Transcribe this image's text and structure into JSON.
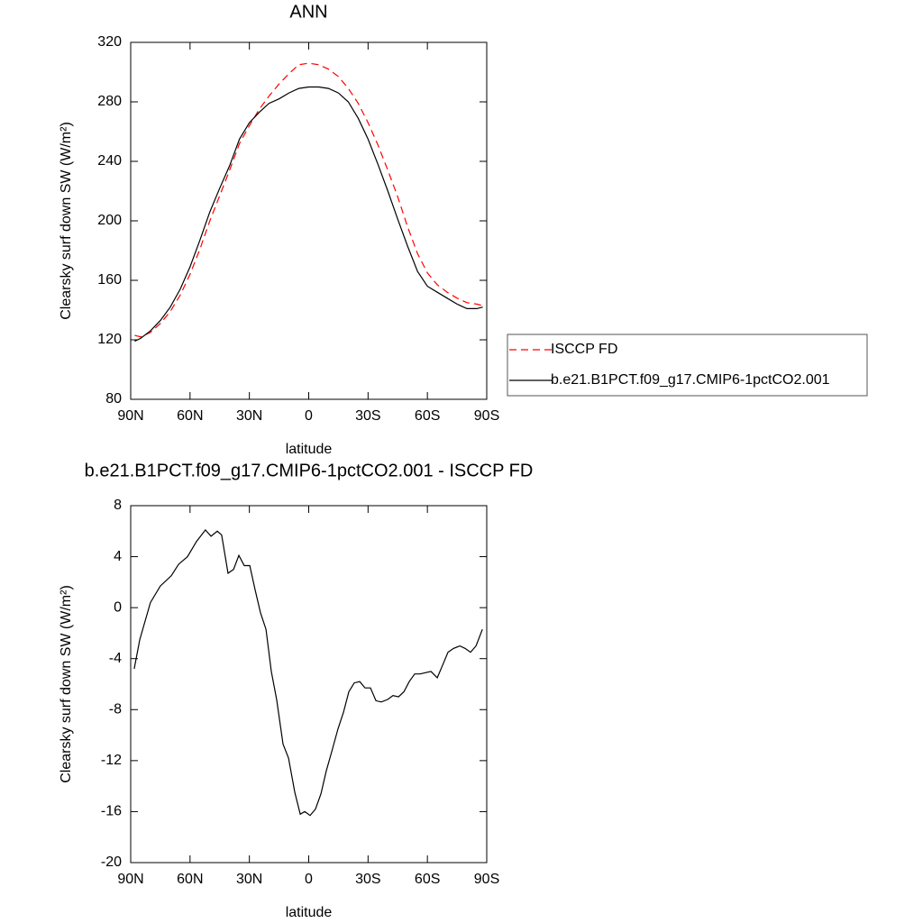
{
  "chart_data": [
    {
      "type": "line",
      "title": "ANN",
      "xlabel": "latitude",
      "ylabel": "Clearsky surf down SW (W/m²)",
      "x": [
        88,
        85,
        80,
        75,
        70,
        65,
        60,
        55,
        50,
        45,
        40,
        35,
        30,
        25,
        20,
        15,
        10,
        5,
        0,
        -5,
        -10,
        -15,
        -20,
        -25,
        -30,
        -35,
        -40,
        -45,
        -50,
        -55,
        -60,
        -65,
        -70,
        -75,
        -80,
        -85,
        -88
      ],
      "series": [
        {
          "name": "ISCCP FD",
          "color": "#ff0000",
          "linestyle": "dashed",
          "values": [
            123,
            122,
            125,
            131,
            139,
            150,
            164,
            181,
            200,
            217,
            234,
            252,
            264,
            275,
            284,
            292,
            299,
            305,
            306,
            305,
            302,
            297,
            289,
            279,
            266,
            251,
            234,
            216,
            196,
            178,
            165,
            157,
            152,
            148,
            145,
            144,
            143
          ]
        },
        {
          "name": "b.e21.B1PCT.f09_g17.CMIP6-1pctCO2.001",
          "color": "#000000",
          "linestyle": "solid",
          "values": [
            119,
            121,
            126,
            133,
            142,
            154,
            169,
            187,
            206,
            222,
            237,
            255,
            266,
            273,
            279,
            282,
            286,
            289,
            290,
            290,
            289,
            286,
            280,
            269,
            255,
            238,
            220,
            201,
            183,
            166,
            156,
            152,
            148,
            144,
            141,
            141,
            142
          ]
        }
      ],
      "xlim": [
        90,
        -90
      ],
      "xticks": [
        {
          "value": 90,
          "label": "90N"
        },
        {
          "value": 60,
          "label": "60N"
        },
        {
          "value": 30,
          "label": "30N"
        },
        0,
        {
          "value": -30,
          "label": "30S"
        },
        {
          "value": -60,
          "label": "60S"
        },
        {
          "value": -90,
          "label": "90S"
        }
      ],
      "ylim": [
        80,
        320
      ],
      "yticks": [
        80,
        120,
        160,
        200,
        240,
        280,
        320
      ],
      "legend": "right"
    },
    {
      "type": "line",
      "title": "b.e21.B1PCT.f09_g17.CMIP6-1pctCO2.001 - ISCCP FD",
      "xlabel": "latitude",
      "ylabel": "Clearsky surf down SW (W/m²)",
      "x": [
        88.2,
        85.4,
        80.0,
        75.0,
        69.5,
        65.8,
        61.3,
        56.7,
        52.2,
        49.4,
        46.2,
        44.0,
        40.8,
        38.0,
        35.3,
        32.6,
        29.8,
        27.1,
        24.4,
        21.6,
        18.9,
        16.2,
        13.0,
        10.2,
        7.0,
        4.3,
        2.0,
        -0.7,
        -3.4,
        -6.2,
        -8.9,
        -11.6,
        -14.8,
        -17.6,
        -20.3,
        -23.0,
        -25.8,
        -28.5,
        -31.2,
        -34.0,
        -36.7,
        -39.9,
        -42.6,
        -45.4,
        -48.1,
        -50.8,
        -53.6,
        -56.3,
        -59.0,
        -61.8,
        -65.0,
        -67.7,
        -70.4,
        -73.2,
        -76.4,
        -79.1,
        -81.8,
        -84.6,
        -87.8
      ],
      "series": [
        {
          "color": "#000000",
          "linestyle": "solid",
          "values": [
            -4.8,
            -2.5,
            0.4,
            1.7,
            2.5,
            3.4,
            4.0,
            5.2,
            6.1,
            5.6,
            6.0,
            5.7,
            2.7,
            3.0,
            4.1,
            3.3,
            3.3,
            1.4,
            -0.4,
            -1.7,
            -5.0,
            -7.2,
            -10.7,
            -11.8,
            -14.5,
            -16.2,
            -16.0,
            -16.3,
            -15.8,
            -14.6,
            -12.8,
            -11.3,
            -9.5,
            -8.2,
            -6.6,
            -5.9,
            -5.8,
            -6.3,
            -6.3,
            -7.3,
            -7.4,
            -7.2,
            -6.9,
            -7.0,
            -6.6,
            -5.8,
            -5.2,
            -5.2,
            -5.1,
            -5.0,
            -5.5,
            -4.5,
            -3.5,
            -3.2,
            -3.0,
            -3.2,
            -3.5,
            -3.0,
            -1.7
          ]
        }
      ],
      "xlim": [
        90,
        -90
      ],
      "xticks": [
        {
          "value": 90,
          "label": "90N"
        },
        {
          "value": 60,
          "label": "60N"
        },
        {
          "value": 30,
          "label": "30N"
        },
        0,
        {
          "value": -30,
          "label": "30S"
        },
        {
          "value": -60,
          "label": "60S"
        },
        {
          "value": -90,
          "label": "90S"
        }
      ],
      "ylim": [
        -20,
        8
      ],
      "yticks": [
        -20,
        -16,
        -12,
        -8,
        -4,
        0,
        4,
        8
      ]
    }
  ]
}
